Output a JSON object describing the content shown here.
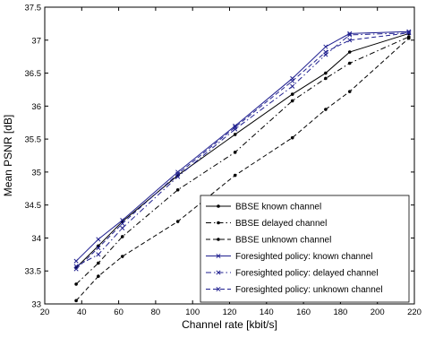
{
  "chart_data": {
    "type": "line",
    "xlabel": "Channel rate [kbit/s]",
    "ylabel": "Mean PSNR [dB]",
    "xlim": [
      20,
      220
    ],
    "ylim": [
      33,
      37.5
    ],
    "xticks": [
      20,
      40,
      60,
      80,
      100,
      120,
      140,
      160,
      180,
      200,
      220
    ],
    "yticks": [
      33,
      33.5,
      34,
      34.5,
      35,
      35.5,
      36,
      36.5,
      37,
      37.5
    ],
    "grid": false,
    "legend_position": "bottom-right",
    "x": [
      37,
      49,
      62,
      92,
      123,
      154,
      172,
      185,
      217
    ],
    "series": [
      {
        "name": "BBSE known channel",
        "color": "#000000",
        "dash": "solid",
        "marker": "dot",
        "values": [
          33.55,
          33.88,
          34.25,
          34.95,
          35.57,
          36.18,
          36.5,
          36.82,
          37.1
        ]
      },
      {
        "name": "BBSE delayed channel",
        "color": "#000000",
        "dash": "dashdot",
        "marker": "dot",
        "values": [
          33.3,
          33.62,
          34.02,
          34.73,
          35.3,
          36.08,
          36.42,
          36.65,
          37.05
        ]
      },
      {
        "name": "BBSE unknown channel",
        "color": "#000000",
        "dash": "dashed",
        "marker": "dot",
        "values": [
          33.05,
          33.42,
          33.72,
          34.25,
          34.95,
          35.52,
          35.95,
          36.22,
          37.03
        ]
      },
      {
        "name": "Foresighted policy: known channel",
        "color": "#1f1f8f",
        "dash": "solid",
        "marker": "x",
        "values": [
          33.65,
          33.98,
          34.27,
          35.0,
          35.7,
          36.42,
          36.9,
          37.1,
          37.13
        ]
      },
      {
        "name": "Foresighted policy: delayed channel",
        "color": "#1f1f8f",
        "dash": "dashdot",
        "marker": "x",
        "values": [
          33.57,
          33.75,
          34.15,
          34.93,
          35.65,
          36.3,
          36.78,
          37.08,
          37.11
        ]
      },
      {
        "name": "Foresighted policy: unknown channel",
        "color": "#1f1f8f",
        "dash": "dashed",
        "marker": "x",
        "values": [
          33.53,
          33.85,
          34.22,
          34.97,
          35.68,
          36.38,
          36.82,
          37.0,
          37.11
        ]
      }
    ]
  }
}
